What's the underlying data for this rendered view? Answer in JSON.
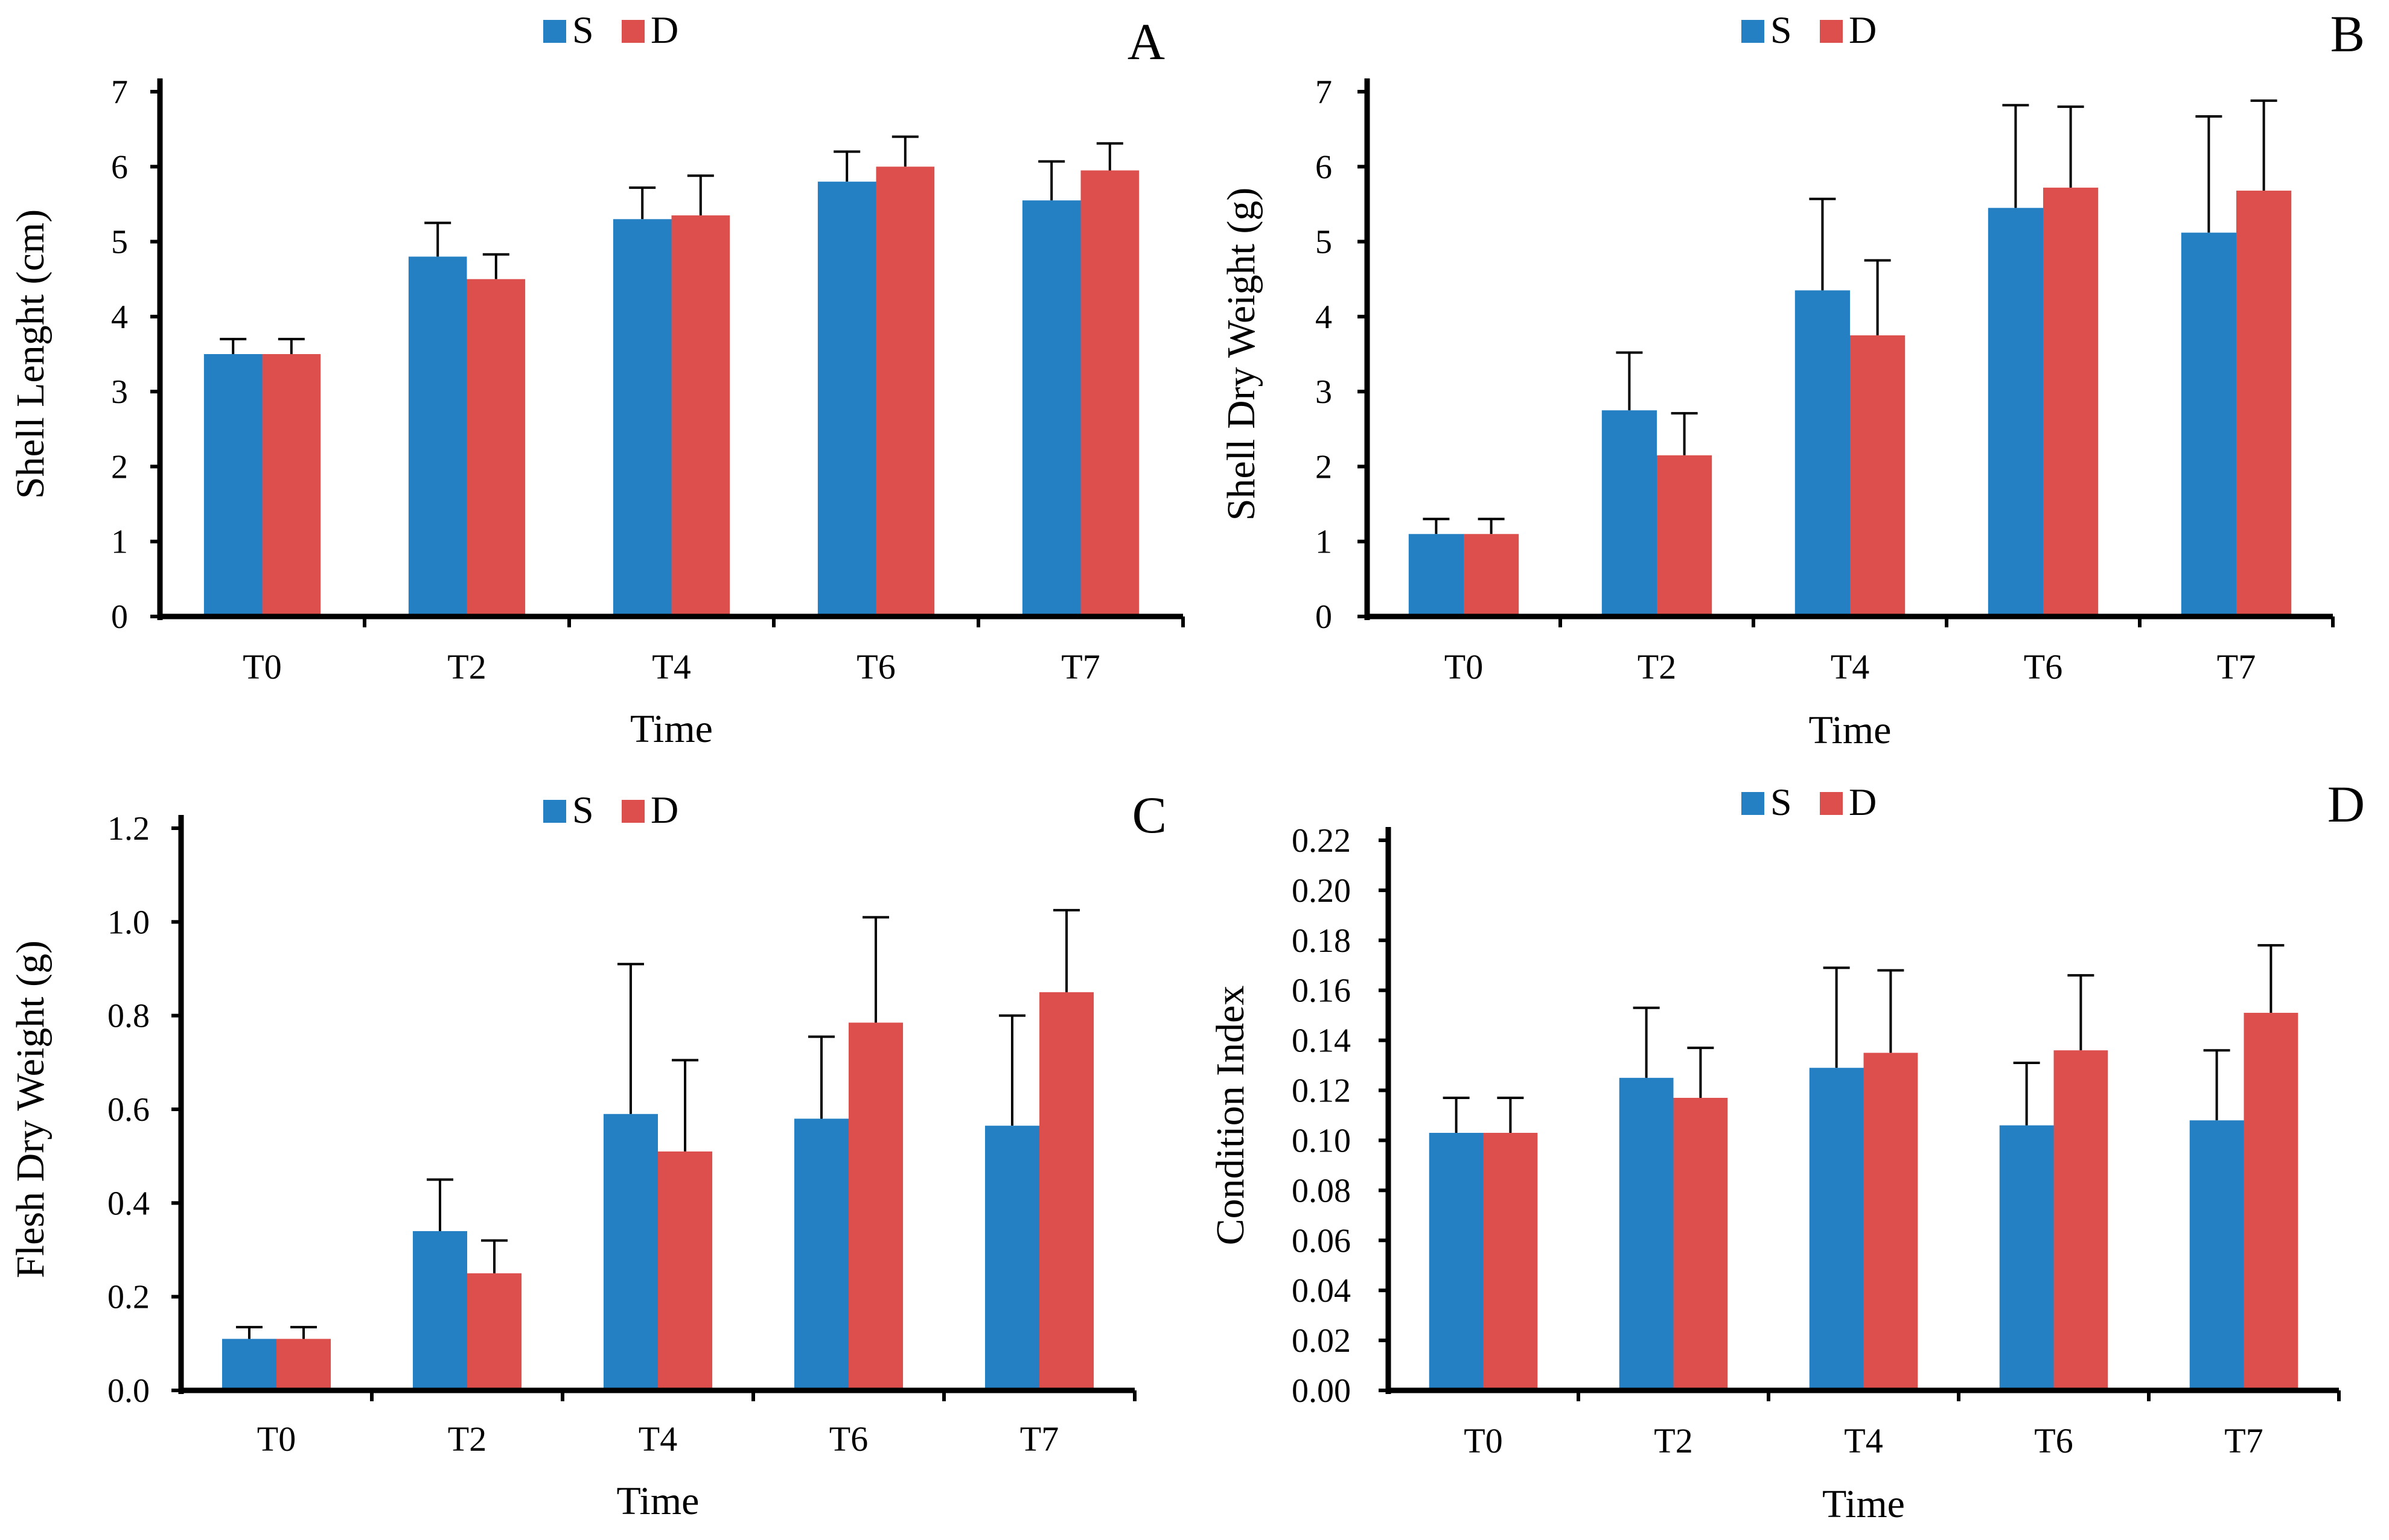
{
  "colors": {
    "S": "#2580c3",
    "D": "#dc4f4d",
    "axis": "#000000",
    "error": "#000000"
  },
  "chart_data": [
    {
      "panel": "A",
      "type": "bar",
      "title": "",
      "xlabel": "Time",
      "ylabel": "Shell Lenght (cm)",
      "categories": [
        "T0",
        "T2",
        "T4",
        "T6",
        "T7"
      ],
      "ylim": [
        0,
        7
      ],
      "yticks": [
        0,
        1,
        2,
        3,
        4,
        5,
        6,
        7
      ],
      "ytick_labels": [
        "0",
        "1",
        "2",
        "3",
        "4",
        "5",
        "6",
        "7"
      ],
      "legend": [
        "S",
        "D"
      ],
      "legend_position": "top-center",
      "series": [
        {
          "name": "S",
          "values": [
            3.5,
            4.8,
            5.3,
            5.8,
            5.55
          ],
          "errors": [
            0.2,
            0.45,
            0.42,
            0.4,
            0.52
          ]
        },
        {
          "name": "D",
          "values": [
            3.5,
            4.5,
            5.35,
            6.0,
            5.95
          ],
          "errors": [
            0.2,
            0.33,
            0.53,
            0.4,
            0.36
          ]
        }
      ]
    },
    {
      "panel": "B",
      "type": "bar",
      "title": "",
      "xlabel": "Time",
      "ylabel": "Shell Dry Weight (g)",
      "categories": [
        "T0",
        "T2",
        "T4",
        "T6",
        "T7"
      ],
      "ylim": [
        0,
        7
      ],
      "yticks": [
        0,
        1,
        2,
        3,
        4,
        5,
        6,
        7
      ],
      "ytick_labels": [
        "0",
        "1",
        "2",
        "3",
        "4",
        "5",
        "6",
        "7"
      ],
      "legend": [
        "S",
        "D"
      ],
      "legend_position": "top-center",
      "series": [
        {
          "name": "S",
          "values": [
            1.1,
            2.75,
            4.35,
            5.45,
            5.12
          ],
          "errors": [
            0.2,
            0.77,
            1.22,
            1.37,
            1.55
          ]
        },
        {
          "name": "D",
          "values": [
            1.1,
            2.15,
            3.75,
            5.72,
            5.68
          ],
          "errors": [
            0.2,
            0.56,
            1.0,
            1.08,
            1.2
          ]
        }
      ]
    },
    {
      "panel": "C",
      "type": "bar",
      "title": "",
      "xlabel": "Time",
      "ylabel": "Flesh Dry Weight (g)",
      "categories": [
        "T0",
        "T2",
        "T4",
        "T6",
        "T7"
      ],
      "ylim": [
        0,
        1.2
      ],
      "yticks": [
        0,
        0.2,
        0.4,
        0.6,
        0.8,
        1.0,
        1.2
      ],
      "ytick_labels": [
        "0.0",
        "0.2",
        "0.4",
        "0.6",
        "0.8",
        "1.0",
        "1.2"
      ],
      "legend": [
        "S",
        "D"
      ],
      "legend_position": "top-center",
      "series": [
        {
          "name": "S",
          "values": [
            0.11,
            0.34,
            0.59,
            0.58,
            0.565
          ],
          "errors": [
            0.025,
            0.11,
            0.32,
            0.175,
            0.235
          ]
        },
        {
          "name": "D",
          "values": [
            0.11,
            0.25,
            0.51,
            0.785,
            0.85
          ],
          "errors": [
            0.025,
            0.07,
            0.195,
            0.225,
            0.175
          ]
        }
      ]
    },
    {
      "panel": "D",
      "type": "bar",
      "title": "",
      "xlabel": "Time",
      "ylabel": "Condition Index",
      "categories": [
        "T0",
        "T2",
        "T4",
        "T6",
        "T7"
      ],
      "ylim": [
        0,
        0.22
      ],
      "yticks": [
        0,
        0.02,
        0.04,
        0.06,
        0.08,
        0.1,
        0.12,
        0.14,
        0.16,
        0.18,
        0.2,
        0.22
      ],
      "ytick_labels": [
        "0.00",
        "0.02",
        "0.04",
        "0.06",
        "0.08",
        "0.10",
        "0.12",
        "0.14",
        "0.16",
        "0.18",
        "0.20",
        "0.22"
      ],
      "legend": [
        "S",
        "D"
      ],
      "legend_position": "top-center",
      "series": [
        {
          "name": "S",
          "values": [
            0.103,
            0.125,
            0.129,
            0.106,
            0.108
          ],
          "errors": [
            0.014,
            0.028,
            0.04,
            0.025,
            0.028
          ]
        },
        {
          "name": "D",
          "values": [
            0.103,
            0.117,
            0.135,
            0.136,
            0.151
          ],
          "errors": [
            0.014,
            0.02,
            0.033,
            0.03,
            0.027
          ]
        }
      ]
    }
  ]
}
